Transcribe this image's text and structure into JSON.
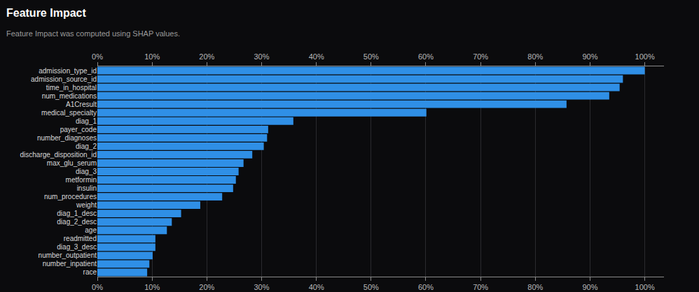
{
  "chart_data": {
    "type": "bar",
    "orientation": "horizontal",
    "title": "Feature Impact",
    "subtitle": "Feature Impact was computed using SHAP values.",
    "categories": [
      "admission_type_id",
      "admission_source_id",
      "time_in_hospital",
      "num_medications",
      "A1Cresult",
      "medical_specialty",
      "diag_1",
      "payer_code",
      "number_diagnoses",
      "diag_2",
      "discharge_disposition_id",
      "max_glu_serum",
      "diag_3",
      "metformin",
      "insulin",
      "num_procedures",
      "weight",
      "diag_1_desc",
      "diag_2_desc",
      "age",
      "readmitted",
      "diag_3_desc",
      "number_outpatient",
      "number_inpatient",
      "race"
    ],
    "values": [
      100,
      96.0,
      95.4,
      93.5,
      85.7,
      60.1,
      35.8,
      31.2,
      31.0,
      30.4,
      28.3,
      26.7,
      25.8,
      25.3,
      24.8,
      22.8,
      18.8,
      15.3,
      13.6,
      12.7,
      10.6,
      10.6,
      10.1,
      9.5,
      9.1
    ],
    "color": "#2f8fe6",
    "xlim": [
      0,
      103.5
    ],
    "xticks": [
      {
        "value": 0,
        "label": "0%"
      },
      {
        "value": 10,
        "label": "10%"
      },
      {
        "value": 20,
        "label": "20%"
      },
      {
        "value": 30,
        "label": "30%"
      },
      {
        "value": 40,
        "label": "40%"
      },
      {
        "value": 50,
        "label": "50%"
      },
      {
        "value": 60,
        "label": "60%"
      },
      {
        "value": 70,
        "label": "70%"
      },
      {
        "value": 80,
        "label": "80%"
      },
      {
        "value": 90,
        "label": "90%"
      },
      {
        "value": 100,
        "label": "100%"
      }
    ],
    "grid": true
  }
}
